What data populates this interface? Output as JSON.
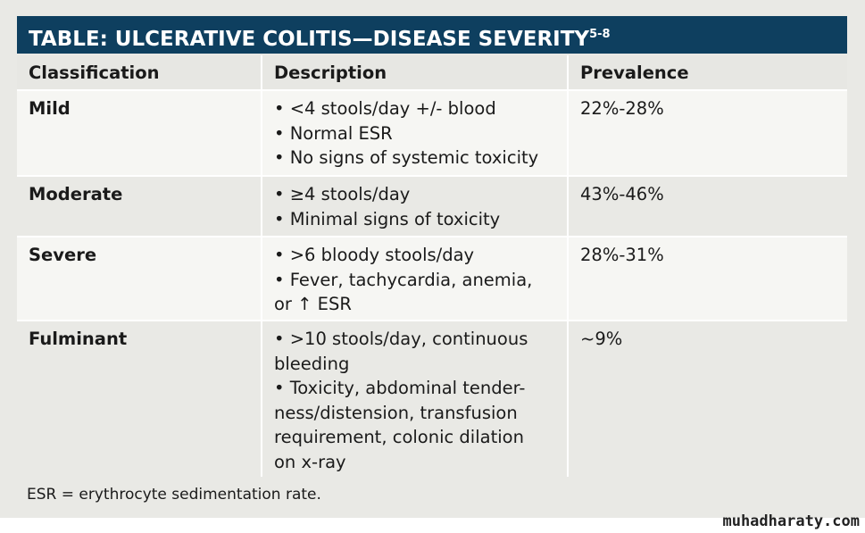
{
  "title": {
    "text": "TABLE: ULCERATIVE COLITIS—DISEASE SEVERITY",
    "superscript": "5-8"
  },
  "columns": [
    "Classification",
    "Description",
    "Prevalence"
  ],
  "rows": [
    {
      "classification": "Mild",
      "description": [
        "• <4 stools/day +/- blood",
        "• Normal ESR",
        "• No signs of systemic toxicity"
      ],
      "prevalence": "22%-28%"
    },
    {
      "classification": "Moderate",
      "description": [
        "• ≥4 stools/day",
        "• Minimal signs of toxicity"
      ],
      "prevalence": "43%-46%"
    },
    {
      "classification": "Severe",
      "description": [
        "• >6 bloody stools/day",
        "• Fever, tachycardia, anemia,",
        "or ↑ ESR"
      ],
      "prevalence": "28%-31%"
    },
    {
      "classification": "Fulminant",
      "description": [
        "• >10 stools/day, continuous",
        "bleeding",
        "• Toxicity, abdominal tender-",
        "ness/distension, transfusion",
        "requirement, colonic dilation",
        "on x-ray"
      ],
      "prevalence": "~9%"
    }
  ],
  "footnote": "ESR = erythrocyte sedimentation rate.",
  "watermark": "muhadharaty.com",
  "colors": {
    "title_bar": "#0e3f5f",
    "row_light": "#f6f6f3",
    "row_dark": "#e9e9e5"
  }
}
